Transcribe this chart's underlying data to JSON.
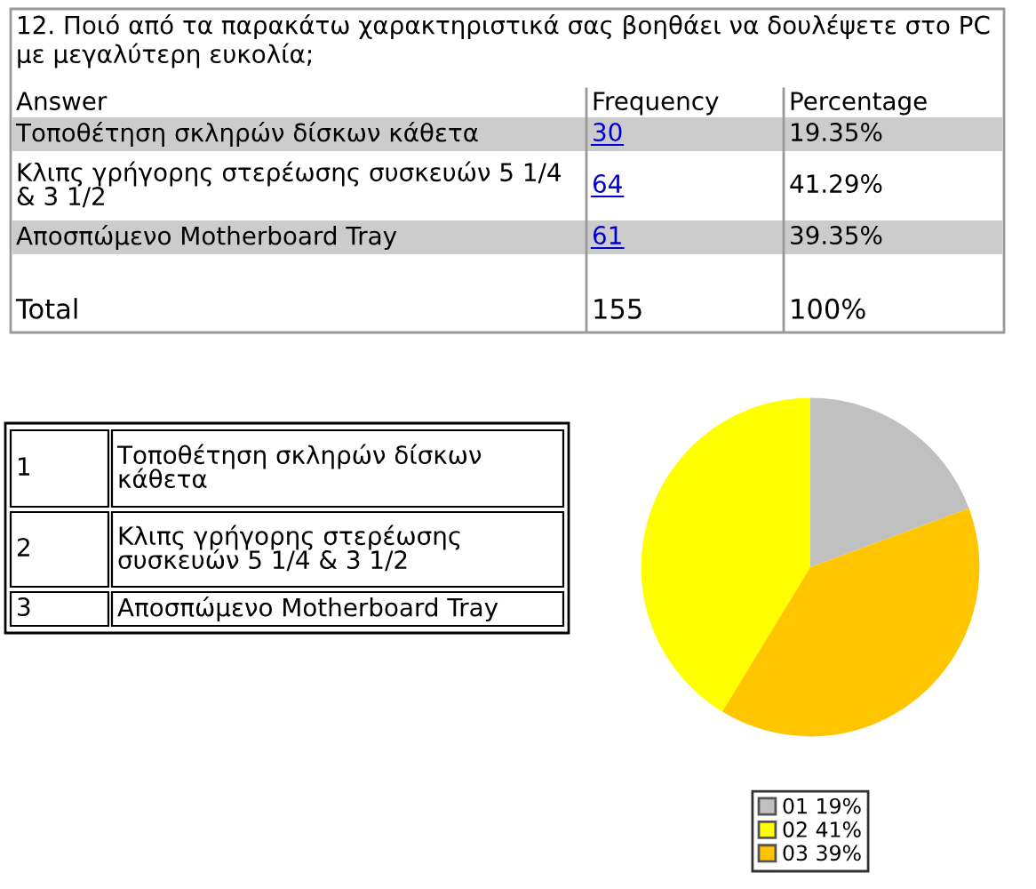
{
  "chart_data": {
    "type": "pie",
    "title": "12. Ποιό από τα παρακάτω χαρακτηριστικά σας βοηθάει να δουλέψετε στο PC με μεγαλύτερη ευκολία;",
    "categories": [
      "01 19%",
      "02 41%",
      "03 39%"
    ],
    "values": [
      19.35,
      41.29,
      39.35
    ],
    "colors": [
      "#c0c0c0",
      "#ffff00",
      "#ffc600"
    ],
    "legend": "bottom",
    "annotations": [
      "Answer",
      "Frequency",
      "Percentage",
      "Τοποθέτηση σκληρών δίσκων κάθετα",
      "Κλιπς γρήγορης στερέωσης συσκευών 5 1/4 & 3 1/2",
      "Αποσπώμενο Motherboard Tray",
      "19.35%",
      "41.29%",
      "39.35%",
      "Total",
      "155",
      "100%",
      "1",
      "2",
      "3",
      "30",
      "64",
      "61"
    ]
  }
}
